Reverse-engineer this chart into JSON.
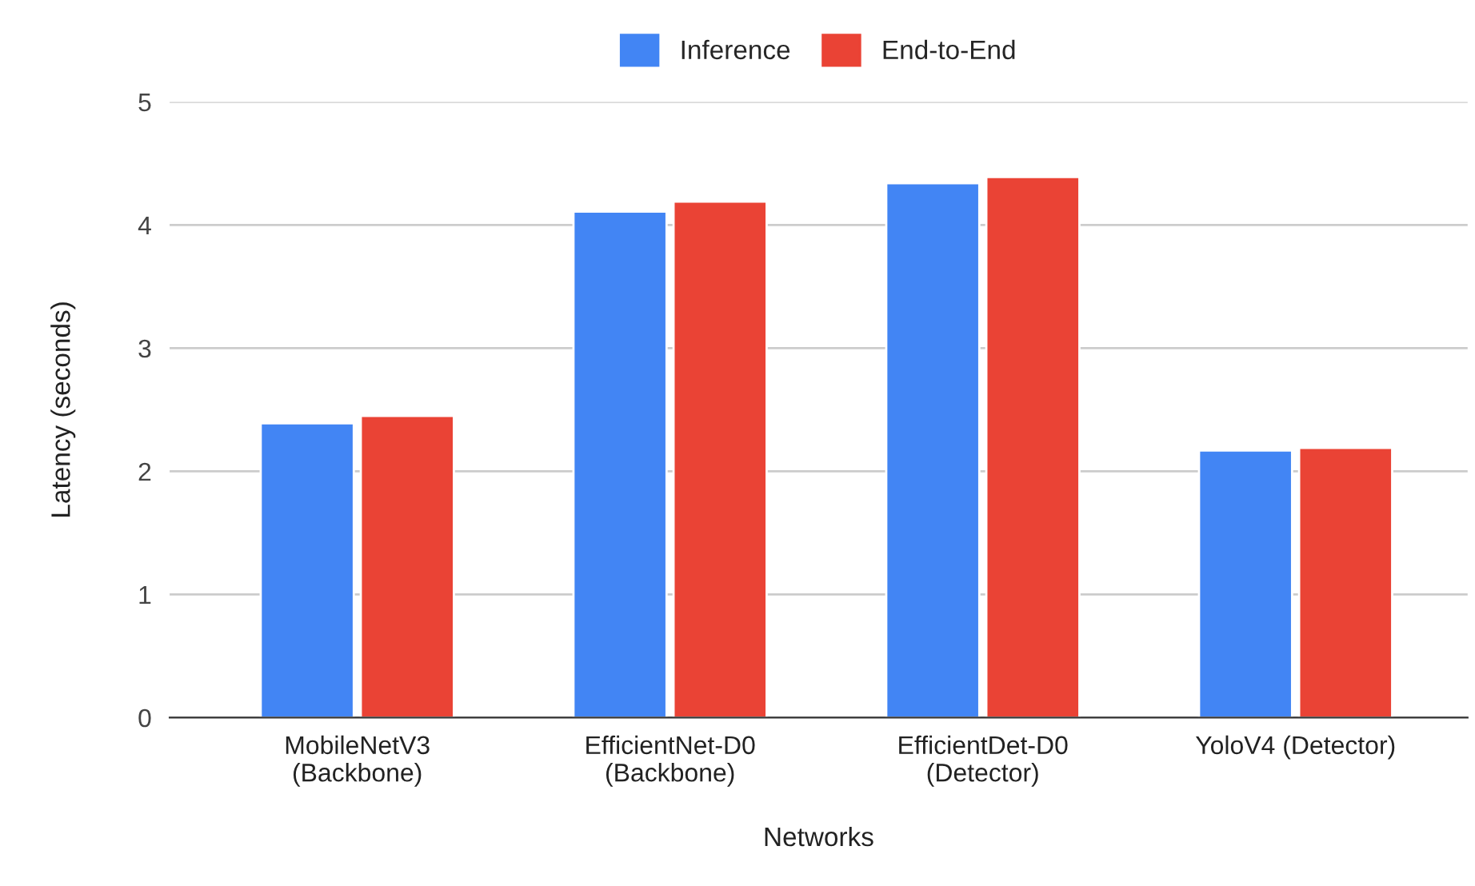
{
  "chart_data": {
    "type": "bar",
    "xlabel": "Networks",
    "ylabel": "Latency (seconds)",
    "categories": [
      "MobileNetV3\n(Backbone)",
      "EfficientNet-D0\n(Backbone)",
      "EfficientDet-D0\n(Detector)",
      "YoloV4 (Detector)"
    ],
    "series": [
      {
        "name": "Inference",
        "color": "#4285f4",
        "values": [
          2.39,
          4.11,
          4.34,
          2.17
        ]
      },
      {
        "name": "End-to-End",
        "color": "#ea4335",
        "values": [
          2.45,
          4.19,
          4.39,
          2.19
        ]
      }
    ],
    "ylim": [
      0,
      5
    ],
    "yticks": [
      0,
      1,
      2,
      3,
      4,
      5
    ],
    "grid": "y",
    "legend": "top"
  }
}
